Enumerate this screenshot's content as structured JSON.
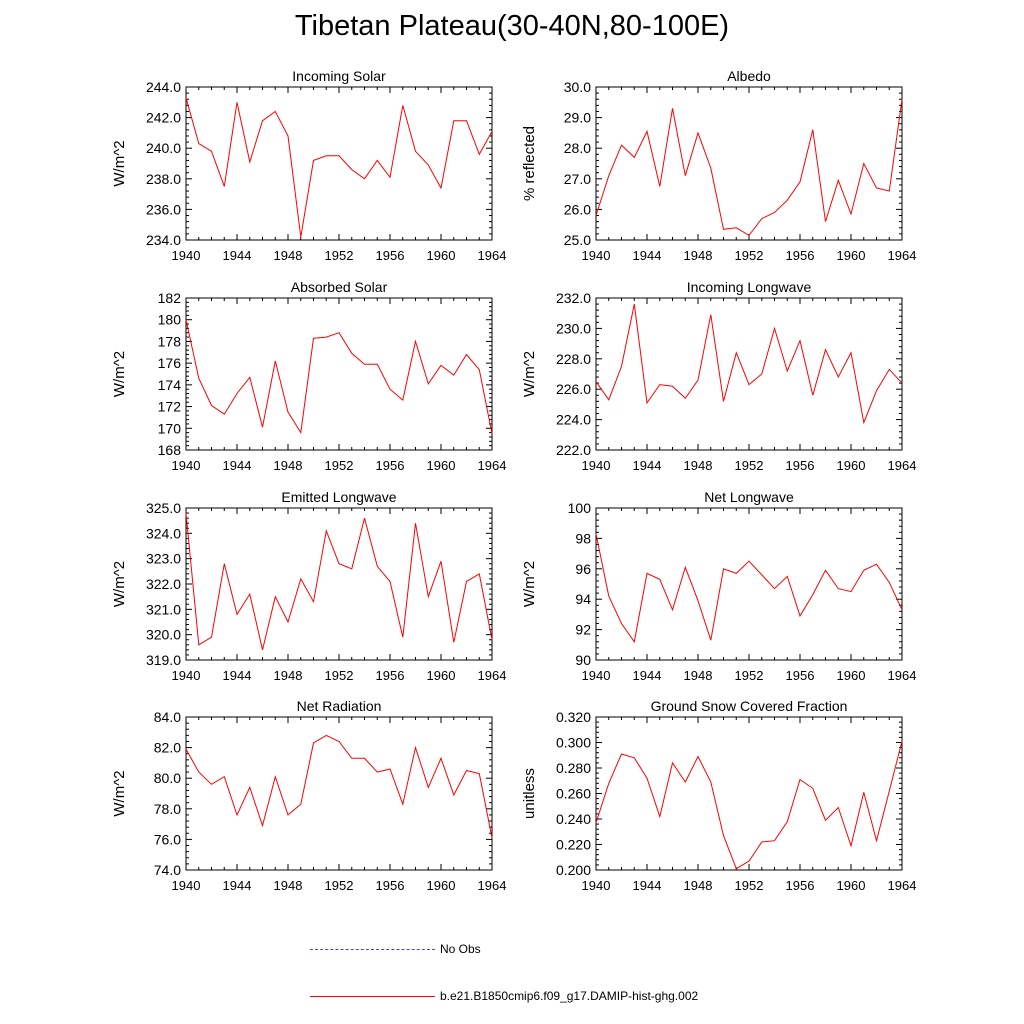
{
  "title": "Tibetan Plateau(30-40N,80-100E)",
  "colors": {
    "model": "#ff0000",
    "obs": "#3b4cc0"
  },
  "legend": [
    {
      "label": "No Obs",
      "style": "dashed",
      "color_key": "obs"
    },
    {
      "label": "b.e21.B1850cmip6.f09_g17.DAMIP-hist-ghg.002",
      "style": "solid",
      "color_key": "model"
    }
  ],
  "chart_data": [
    {
      "type": "line",
      "title": "Incoming Solar",
      "ylabel": "W/m^2",
      "xlim": [
        1940,
        1964
      ],
      "ylim": [
        234,
        244
      ],
      "xticks": [
        1940,
        1944,
        1948,
        1952,
        1956,
        1960,
        1964
      ],
      "yticks": [
        234,
        236,
        238,
        240,
        242,
        244
      ],
      "ytick_labels": [
        "234.0",
        "236.0",
        "238.0",
        "240.0",
        "242.0",
        "244.0"
      ],
      "x": [
        1940,
        1941,
        1942,
        1943,
        1944,
        1945,
        1946,
        1947,
        1948,
        1949,
        1950,
        1951,
        1952,
        1953,
        1954,
        1955,
        1956,
        1957,
        1958,
        1959,
        1960,
        1961,
        1962,
        1963,
        1964
      ],
      "series": [
        {
          "values": [
            243.3,
            240.3,
            239.8,
            237.5,
            243.0,
            239.1,
            241.8,
            242.4,
            240.8,
            234.2,
            239.2,
            239.5,
            239.5,
            238.6,
            238.0,
            239.2,
            238.1,
            242.8,
            239.8,
            238.9,
            237.4,
            241.8,
            241.8,
            239.6,
            241.1
          ]
        }
      ]
    },
    {
      "type": "line",
      "title": "Albedo",
      "ylabel": "% reflected",
      "xlim": [
        1940,
        1964
      ],
      "ylim": [
        25,
        30
      ],
      "xticks": [
        1940,
        1944,
        1948,
        1952,
        1956,
        1960,
        1964
      ],
      "yticks": [
        25,
        26,
        27,
        28,
        29,
        30
      ],
      "ytick_labels": [
        "25.0",
        "26.0",
        "27.0",
        "28.0",
        "29.0",
        "30.0"
      ],
      "x": [
        1940,
        1941,
        1942,
        1943,
        1944,
        1945,
        1946,
        1947,
        1948,
        1949,
        1950,
        1951,
        1952,
        1953,
        1954,
        1955,
        1956,
        1957,
        1958,
        1959,
        1960,
        1961,
        1962,
        1963,
        1964
      ],
      "series": [
        {
          "values": [
            25.8,
            27.1,
            28.1,
            27.7,
            28.55,
            26.75,
            29.3,
            27.1,
            28.5,
            27.35,
            25.35,
            25.4,
            25.15,
            25.7,
            25.9,
            26.3,
            26.9,
            28.6,
            25.6,
            26.95,
            25.85,
            27.5,
            26.7,
            26.6,
            29.6
          ]
        }
      ]
    },
    {
      "type": "line",
      "title": "Absorbed Solar",
      "ylabel": "W/m^2",
      "xlim": [
        1940,
        1964
      ],
      "ylim": [
        168,
        182
      ],
      "xticks": [
        1940,
        1944,
        1948,
        1952,
        1956,
        1960,
        1964
      ],
      "yticks": [
        168,
        170,
        172,
        174,
        176,
        178,
        180,
        182
      ],
      "ytick_labels": [
        "168",
        "170",
        "172",
        "174",
        "176",
        "178",
        "180",
        "182"
      ],
      "x": [
        1940,
        1941,
        1942,
        1943,
        1944,
        1945,
        1946,
        1947,
        1948,
        1949,
        1950,
        1951,
        1952,
        1953,
        1954,
        1955,
        1956,
        1957,
        1958,
        1959,
        1960,
        1961,
        1962,
        1963,
        1964
      ],
      "series": [
        {
          "values": [
            180.0,
            174.6,
            172.1,
            171.3,
            173.2,
            174.7,
            170.1,
            176.2,
            171.5,
            169.6,
            178.3,
            178.4,
            178.8,
            176.9,
            175.9,
            175.9,
            173.6,
            172.6,
            178.0,
            174.1,
            175.8,
            174.9,
            176.8,
            175.4,
            169.5
          ]
        }
      ]
    },
    {
      "type": "line",
      "title": "Incoming Longwave",
      "ylabel": "W/m^2",
      "xlim": [
        1940,
        1964
      ],
      "ylim": [
        222,
        232
      ],
      "xticks": [
        1940,
        1944,
        1948,
        1952,
        1956,
        1960,
        1964
      ],
      "yticks": [
        222,
        224,
        226,
        228,
        230,
        232
      ],
      "ytick_labels": [
        "222.0",
        "224.0",
        "226.0",
        "228.0",
        "230.0",
        "232.0"
      ],
      "x": [
        1940,
        1941,
        1942,
        1943,
        1944,
        1945,
        1946,
        1947,
        1948,
        1949,
        1950,
        1951,
        1952,
        1953,
        1954,
        1955,
        1956,
        1957,
        1958,
        1959,
        1960,
        1961,
        1962,
        1963,
        1964
      ],
      "series": [
        {
          "values": [
            226.5,
            225.3,
            227.5,
            231.6,
            225.1,
            226.3,
            226.2,
            225.4,
            226.6,
            230.9,
            225.2,
            228.4,
            226.3,
            227.0,
            230.0,
            227.2,
            229.2,
            225.6,
            228.6,
            226.8,
            228.4,
            223.8,
            225.9,
            227.3,
            226.4
          ]
        }
      ]
    },
    {
      "type": "line",
      "title": "Emitted Longwave",
      "ylabel": "W/m^2",
      "xlim": [
        1940,
        1964
      ],
      "ylim": [
        319,
        325
      ],
      "xticks": [
        1940,
        1944,
        1948,
        1952,
        1956,
        1960,
        1964
      ],
      "yticks": [
        319,
        320,
        321,
        322,
        323,
        324,
        325
      ],
      "ytick_labels": [
        "319.0",
        "320.0",
        "321.0",
        "322.0",
        "323.0",
        "324.0",
        "325.0"
      ],
      "x": [
        1940,
        1941,
        1942,
        1943,
        1944,
        1945,
        1946,
        1947,
        1948,
        1949,
        1950,
        1951,
        1952,
        1953,
        1954,
        1955,
        1956,
        1957,
        1958,
        1959,
        1960,
        1961,
        1962,
        1963,
        1964
      ],
      "series": [
        {
          "values": [
            324.8,
            319.6,
            319.9,
            322.8,
            320.8,
            321.6,
            319.4,
            321.5,
            320.5,
            322.2,
            321.3,
            324.1,
            322.8,
            322.6,
            324.6,
            322.7,
            322.1,
            319.9,
            324.4,
            321.5,
            322.9,
            319.7,
            322.1,
            322.4,
            319.8
          ]
        }
      ]
    },
    {
      "type": "line",
      "title": "Net Longwave",
      "ylabel": "W/m^2",
      "xlim": [
        1940,
        1964
      ],
      "ylim": [
        90,
        100
      ],
      "xticks": [
        1940,
        1944,
        1948,
        1952,
        1956,
        1960,
        1964
      ],
      "yticks": [
        90,
        92,
        94,
        96,
        98,
        100
      ],
      "ytick_labels": [
        "90",
        "92",
        "94",
        "96",
        "98",
        "100"
      ],
      "x": [
        1940,
        1941,
        1942,
        1943,
        1944,
        1945,
        1946,
        1947,
        1948,
        1949,
        1950,
        1951,
        1952,
        1953,
        1954,
        1955,
        1956,
        1957,
        1958,
        1959,
        1960,
        1961,
        1962,
        1963,
        1964
      ],
      "series": [
        {
          "values": [
            98.3,
            94.2,
            92.4,
            91.2,
            95.7,
            95.3,
            93.3,
            96.1,
            93.9,
            91.3,
            96.0,
            95.7,
            96.5,
            95.6,
            94.7,
            95.5,
            92.9,
            94.3,
            95.9,
            94.7,
            94.5,
            95.9,
            96.3,
            95.1,
            93.3
          ]
        }
      ]
    },
    {
      "type": "line",
      "title": "Net Radiation",
      "ylabel": "W/m^2",
      "xlim": [
        1940,
        1964
      ],
      "ylim": [
        74,
        84
      ],
      "xticks": [
        1940,
        1944,
        1948,
        1952,
        1956,
        1960,
        1964
      ],
      "yticks": [
        74,
        76,
        78,
        80,
        82,
        84
      ],
      "ytick_labels": [
        "74.0",
        "76.0",
        "78.0",
        "80.0",
        "82.0",
        "84.0"
      ],
      "x": [
        1940,
        1941,
        1942,
        1943,
        1944,
        1945,
        1946,
        1947,
        1948,
        1949,
        1950,
        1951,
        1952,
        1953,
        1954,
        1955,
        1956,
        1957,
        1958,
        1959,
        1960,
        1961,
        1962,
        1963,
        1964
      ],
      "series": [
        {
          "values": [
            81.9,
            80.4,
            79.6,
            80.1,
            77.6,
            79.4,
            76.9,
            80.1,
            77.6,
            78.3,
            82.3,
            82.8,
            82.4,
            81.3,
            81.3,
            80.4,
            80.6,
            78.3,
            82.0,
            79.4,
            81.3,
            78.9,
            80.5,
            80.3,
            76.1
          ]
        }
      ]
    },
    {
      "type": "line",
      "title": "Ground Snow Covered Fraction",
      "ylabel": "unitless",
      "xlim": [
        1940,
        1964
      ],
      "ylim": [
        0.2,
        0.32
      ],
      "xticks": [
        1940,
        1944,
        1948,
        1952,
        1956,
        1960,
        1964
      ],
      "yticks": [
        0.2,
        0.22,
        0.24,
        0.26,
        0.28,
        0.3,
        0.32
      ],
      "ytick_labels": [
        "0.200",
        "0.220",
        "0.240",
        "0.260",
        "0.280",
        "0.300",
        "0.320"
      ],
      "x": [
        1940,
        1941,
        1942,
        1943,
        1944,
        1945,
        1946,
        1947,
        1948,
        1949,
        1950,
        1951,
        1952,
        1953,
        1954,
        1955,
        1956,
        1957,
        1958,
        1959,
        1960,
        1961,
        1962,
        1963,
        1964
      ],
      "series": [
        {
          "values": [
            0.237,
            0.268,
            0.291,
            0.288,
            0.272,
            0.242,
            0.284,
            0.269,
            0.289,
            0.269,
            0.227,
            0.201,
            0.207,
            0.222,
            0.223,
            0.238,
            0.271,
            0.264,
            0.239,
            0.249,
            0.219,
            0.261,
            0.223,
            0.262,
            0.301
          ]
        }
      ]
    }
  ]
}
